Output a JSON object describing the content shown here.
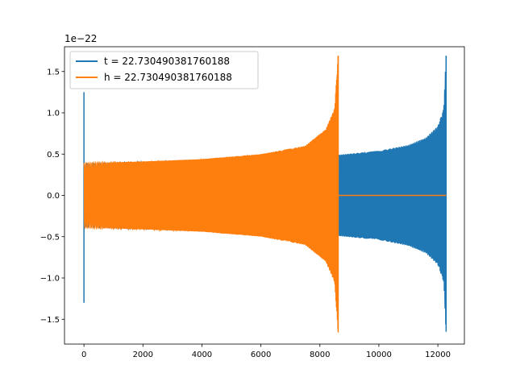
{
  "chart_data": {
    "type": "line",
    "title": "",
    "xlabel": "",
    "ylabel": "",
    "offset_label": "1e−22",
    "scale": 1e-22,
    "xlim": [
      -660,
      12900
    ],
    "ylim": [
      -1.8,
      1.8
    ],
    "x_ticks": [
      0,
      2000,
      4000,
      6000,
      8000,
      10000,
      12000
    ],
    "x_tick_labels": [
      "0",
      "2000",
      "4000",
      "6000",
      "8000",
      "10000",
      "12000"
    ],
    "y_ticks": [
      -1.5,
      -1.0,
      -0.5,
      0.0,
      0.5,
      1.0,
      1.5
    ],
    "y_tick_labels": [
      "−1.5",
      "−1.0",
      "−0.5",
      "0.0",
      "0.5",
      "1.0",
      "1.5"
    ],
    "grid": false,
    "legend_position": "upper-left",
    "series": [
      {
        "name": "t = 22.730490381760188",
        "color": "#1f77b4",
        "envelope_x": [
          0,
          2000,
          4000,
          6000,
          8000,
          10000,
          11000,
          11600,
          12000,
          12200,
          12280
        ],
        "envelope_y": [
          0.38,
          0.4,
          0.42,
          0.44,
          0.47,
          0.54,
          0.61,
          0.7,
          0.84,
          1.05,
          1.69
        ],
        "envelope_y_min": [
          -0.38,
          -0.4,
          -0.42,
          -0.44,
          -0.47,
          -0.54,
          -0.61,
          -0.7,
          -0.84,
          -1.05,
          -1.65
        ],
        "spike_start": {
          "x": 0,
          "y_max": 1.25,
          "y_min": -1.3
        },
        "x_end": 12280,
        "tail_value": 0.0
      },
      {
        "name": "h = 22.730490381760188",
        "color": "#ff7f0e",
        "envelope_x": [
          0,
          2000,
          4000,
          6000,
          7500,
          8200,
          8500,
          8620
        ],
        "envelope_y": [
          0.39,
          0.41,
          0.44,
          0.5,
          0.6,
          0.8,
          1.05,
          1.69
        ],
        "envelope_y_min": [
          -0.39,
          -0.41,
          -0.44,
          -0.5,
          -0.6,
          -0.8,
          -1.05,
          -1.66
        ],
        "x_end": 8620,
        "tail_to_x": 12280,
        "tail_value": 0.0
      }
    ]
  }
}
